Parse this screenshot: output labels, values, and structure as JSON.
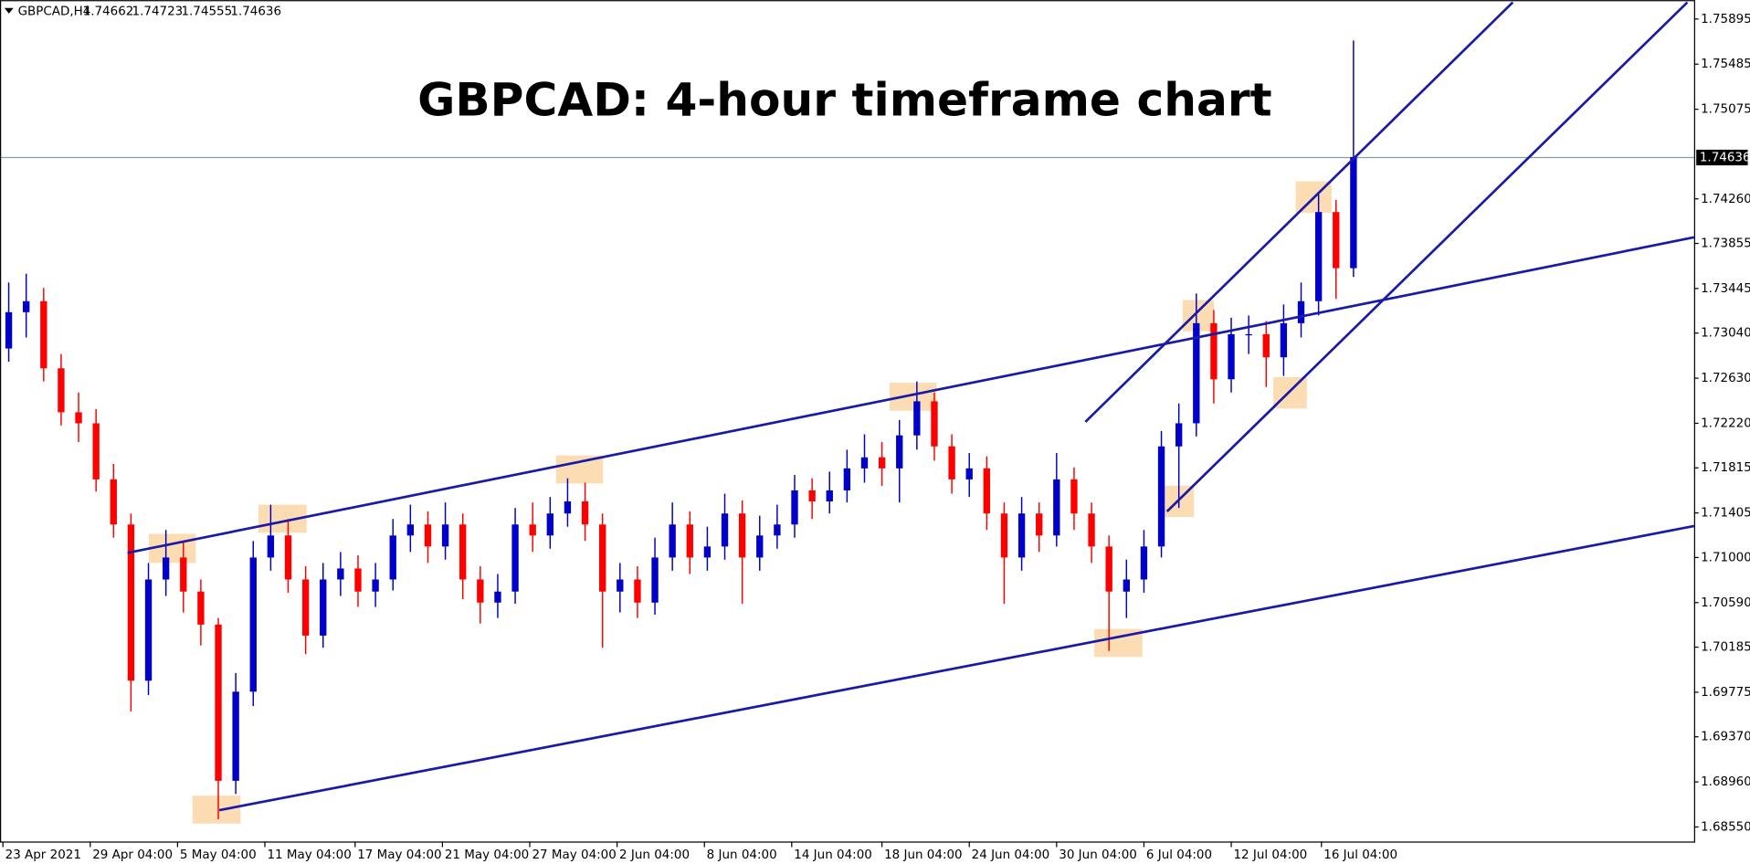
{
  "chart_data": {
    "type": "candlestick",
    "title": "GBPCAD: 4-hour timeframe chart",
    "symbol": "GBPCAD,H4",
    "ohlc": [
      1.74662,
      1.74723,
      1.74555,
      1.74636
    ],
    "last_price": 1.74636,
    "up_color": "#0000c8",
    "down_color": "#ff0000",
    "xlim": [
      0,
      582
    ],
    "ylim": [
      1.68418,
      1.76067
    ],
    "yticks": [
      1.75895,
      1.75485,
      1.75075,
      {
        "value": 1.7426,
        "label": "1.74260"
      },
      1.73855,
      1.73445,
      {
        "value": 1.7304,
        "label": "1.73040"
      },
      {
        "value": 1.7263,
        "label": "1.72630"
      },
      {
        "value": 1.7222,
        "label": "1.72220"
      },
      1.71815,
      1.71405,
      {
        "value": 1.71,
        "label": "1.71000"
      },
      {
        "value": 1.7059,
        "label": "1.70590"
      },
      1.70185,
      1.69775,
      {
        "value": 1.6937,
        "label": "1.69370"
      },
      {
        "value": 1.6896,
        "label": "1.68960"
      },
      {
        "value": 1.6855,
        "label": "1.68550"
      }
    ],
    "xticks": [
      {
        "value": 1,
        "label": "23 Apr 2021"
      },
      {
        "value": 31,
        "label": "29 Apr 04:00"
      },
      {
        "value": 61,
        "label": "5 May 04:00"
      },
      {
        "value": 91,
        "label": "11 May 04:00"
      },
      {
        "value": 122,
        "label": "17 May 04:00"
      },
      {
        "value": 152,
        "label": "21 May 04:00"
      },
      {
        "value": 182,
        "label": "27 May 04:00"
      },
      {
        "value": 212,
        "label": "2 Jun 04:00"
      },
      {
        "value": 242,
        "label": "8 Jun 04:00"
      },
      {
        "value": 272,
        "label": "14 Jun 04:00"
      },
      {
        "value": 303,
        "label": "18 Jun 04:00"
      },
      {
        "value": 333,
        "label": "24 Jun 04:00"
      },
      {
        "value": 363,
        "label": "30 Jun 04:00"
      },
      {
        "value": 393,
        "label": "6 Jul 04:00"
      },
      {
        "value": 423,
        "label": "12 Jul 04:00"
      },
      {
        "value": 454,
        "label": "16 Jul 04:00"
      }
    ],
    "x": [
      3,
      9,
      15,
      21,
      27,
      33,
      39,
      45,
      51,
      57,
      63,
      69,
      75,
      81,
      87,
      93,
      99,
      105,
      111,
      117,
      123,
      129,
      135,
      141,
      147,
      153,
      159,
      165,
      171,
      177,
      183,
      189,
      195,
      201,
      207,
      213,
      219,
      225,
      231,
      237,
      243,
      249,
      255,
      261,
      267,
      273,
      279,
      285,
      291,
      297,
      303,
      309,
      315,
      321,
      327,
      333,
      339,
      345,
      351,
      357,
      363,
      369,
      375,
      381,
      387,
      393,
      399,
      405,
      411,
      417,
      423,
      429,
      435,
      441,
      447,
      453,
      459,
      465
    ],
    "open": [
      1.729,
      1.7323,
      1.7333,
      1.7272,
      1.7232,
      1.7222,
      1.7171,
      1.713,
      1.6988,
      1.708,
      1.71,
      1.7069,
      1.7039,
      1.6897,
      1.6978,
      1.71,
      1.712,
      1.708,
      1.7029,
      1.708,
      1.709,
      1.7069,
      1.708,
      1.712,
      1.713,
      1.711,
      1.713,
      1.708,
      1.7059,
      1.7069,
      1.713,
      1.712,
      1.714,
      1.7151,
      1.713,
      1.7069,
      1.708,
      1.7059,
      1.71,
      1.713,
      1.71,
      1.711,
      1.714,
      1.71,
      1.712,
      1.713,
      1.7161,
      1.7151,
      1.7161,
      1.7181,
      1.7191,
      1.7181,
      1.7211,
      1.7242,
      1.7201,
      1.7171,
      1.7181,
      1.714,
      1.71,
      1.714,
      1.712,
      1.7171,
      1.714,
      1.711,
      1.7069,
      1.708,
      1.711,
      1.7201,
      1.7222,
      1.7313,
      1.7262,
      1.7303,
      1.7303,
      1.7282,
      1.7313,
      1.7333,
      1.7414,
      1.7363
    ],
    "high": [
      1.735,
      1.7358,
      1.7345,
      1.7285,
      1.725,
      1.7235,
      1.7185,
      1.714,
      1.7095,
      1.7125,
      1.7115,
      1.708,
      1.7045,
      1.6995,
      1.7115,
      1.7148,
      1.7135,
      1.7092,
      1.7095,
      1.7105,
      1.7102,
      1.7095,
      1.7135,
      1.7148,
      1.7142,
      1.715,
      1.714,
      1.7092,
      1.7085,
      1.7145,
      1.715,
      1.7155,
      1.7172,
      1.7168,
      1.714,
      1.7095,
      1.7092,
      1.7118,
      1.715,
      1.7142,
      1.7128,
      1.7158,
      1.7152,
      1.7138,
      1.7148,
      1.7175,
      1.7172,
      1.7178,
      1.7198,
      1.7212,
      1.7205,
      1.7225,
      1.726,
      1.725,
      1.7212,
      1.7195,
      1.7192,
      1.715,
      1.7155,
      1.715,
      1.7195,
      1.7182,
      1.715,
      1.712,
      1.7098,
      1.7125,
      1.7215,
      1.724,
      1.734,
      1.7325,
      1.7318,
      1.732,
      1.7315,
      1.733,
      1.735,
      1.743,
      1.7425,
      1.757
    ],
    "low": [
      1.7278,
      1.73,
      1.726,
      1.722,
      1.7205,
      1.716,
      1.7118,
      1.696,
      1.6975,
      1.7065,
      1.705,
      1.702,
      1.6862,
      1.6885,
      1.6965,
      1.7088,
      1.7068,
      1.7012,
      1.7018,
      1.7065,
      1.7055,
      1.7055,
      1.707,
      1.7105,
      1.7095,
      1.7098,
      1.7062,
      1.704,
      1.7045,
      1.7058,
      1.7105,
      1.7108,
      1.7128,
      1.7115,
      1.7018,
      1.705,
      1.7045,
      1.7048,
      1.7088,
      1.7085,
      1.7088,
      1.7098,
      1.7058,
      1.7088,
      1.7108,
      1.7118,
      1.7135,
      1.714,
      1.715,
      1.7168,
      1.7165,
      1.715,
      1.7198,
      1.7188,
      1.7158,
      1.7155,
      1.7125,
      1.7058,
      1.7088,
      1.7105,
      1.711,
      1.7125,
      1.7095,
      1.7015,
      1.7045,
      1.7068,
      1.71,
      1.7145,
      1.721,
      1.724,
      1.725,
      1.7285,
      1.7255,
      1.7265,
      1.73,
      1.732,
      1.7335,
      1.7355
    ],
    "close": [
      1.7323,
      1.7333,
      1.7272,
      1.7232,
      1.7222,
      1.7171,
      1.713,
      1.6988,
      1.708,
      1.71,
      1.7069,
      1.7039,
      1.6897,
      1.6978,
      1.71,
      1.712,
      1.708,
      1.7029,
      1.708,
      1.709,
      1.7069,
      1.708,
      1.712,
      1.713,
      1.711,
      1.713,
      1.708,
      1.7059,
      1.7069,
      1.713,
      1.712,
      1.714,
      1.7151,
      1.713,
      1.7069,
      1.708,
      1.7059,
      1.71,
      1.713,
      1.71,
      1.711,
      1.714,
      1.71,
      1.712,
      1.713,
      1.7161,
      1.7151,
      1.7161,
      1.7181,
      1.7191,
      1.7181,
      1.7211,
      1.7242,
      1.7201,
      1.7171,
      1.7181,
      1.714,
      1.71,
      1.714,
      1.712,
      1.7171,
      1.714,
      1.711,
      1.7069,
      1.708,
      1.711,
      1.7201,
      1.7222,
      1.7313,
      1.7262,
      1.7303,
      1.7303,
      1.7282,
      1.7313,
      1.7333,
      1.7414,
      1.7363,
      1.7464
    ]
  }
}
